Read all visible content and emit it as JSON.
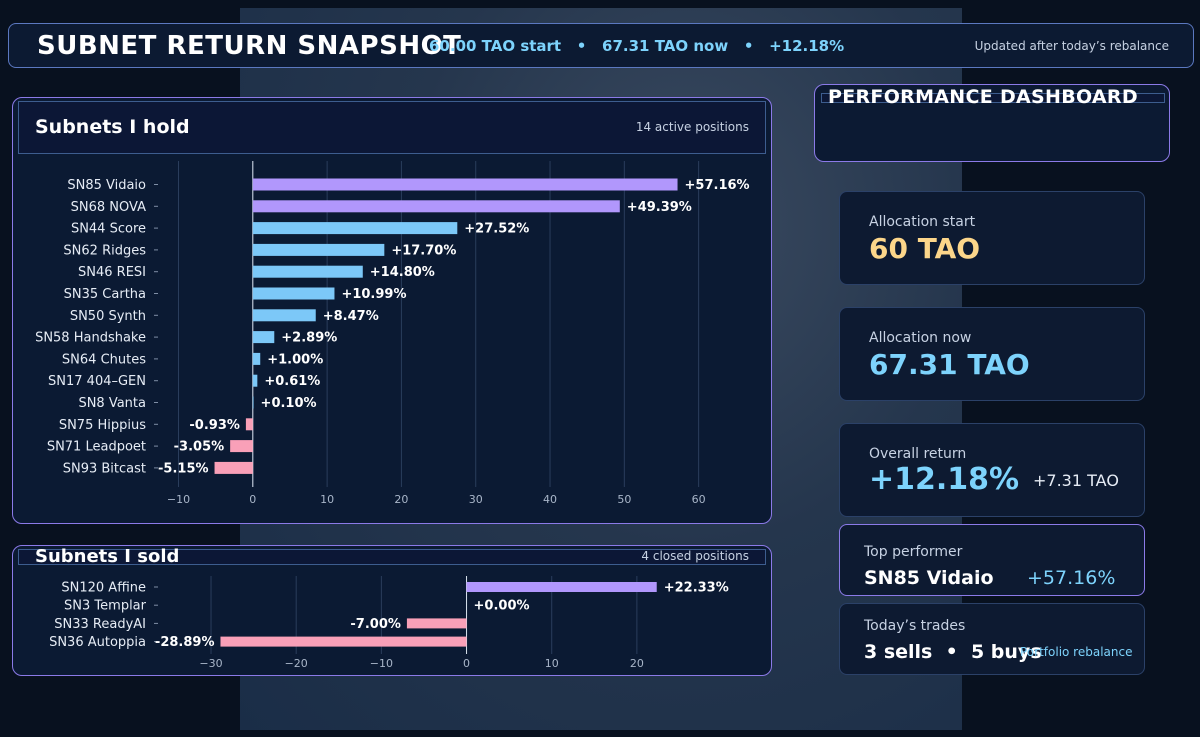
{
  "header": {
    "title": "SUBNET RETURN SNAPSHOT",
    "summary": "60.00 TAO start   •   67.31 TAO now   •   +12.18%",
    "updated": "Updated after today’s rebalance"
  },
  "held_panel": {
    "title": "Subnets I hold",
    "note": "14 active positions"
  },
  "sold_panel": {
    "title": "Subnets I sold",
    "note": "4 closed positions"
  },
  "dashboard": {
    "title": "PERFORMANCE DASHBOARD",
    "allocation_start": {
      "label": "Allocation start",
      "value": "60 TAO"
    },
    "allocation_now": {
      "label": "Allocation now",
      "value": "67.31 TAO"
    },
    "overall_return": {
      "label": "Overall return",
      "value": "+12.18%",
      "delta": "+7.31 TAO"
    },
    "top_performer": {
      "label": "Top performer",
      "name": "SN85 Vidaio",
      "value": "+57.16%"
    },
    "todays_trades": {
      "label": "Today’s trades",
      "value": "3 sells  •  5 buys",
      "note": "Portfolio rebalance"
    }
  },
  "colors": {
    "purple": "#b197fc",
    "blue": "#7cc8f8",
    "pink": "#f9a0b8",
    "gold": "#fcd68a",
    "cyan": "#7dd3fc"
  },
  "chart_data": [
    {
      "type": "bar",
      "orientation": "horizontal",
      "title": "Subnets I hold",
      "categories": [
        "SN85 Vidaio",
        "SN68 NOVA",
        "SN44 Score",
        "SN62 Ridges",
        "SN46 RESI",
        "SN35 Cartha",
        "SN50 Synth",
        "SN58 Handshake",
        "SN64 Chutes",
        "SN17 404–GEN",
        "SN8 Vanta",
        "SN75 Hippius",
        "SN71 Leadpoet",
        "SN93 Bitcast"
      ],
      "values": [
        57.16,
        49.39,
        27.52,
        17.7,
        14.8,
        10.99,
        8.47,
        2.89,
        1.0,
        0.61,
        0.1,
        -0.93,
        -3.05,
        -5.15
      ],
      "data_labels": [
        "+57.16%",
        "+49.39%",
        "+27.52%",
        "+17.70%",
        "+14.80%",
        "+10.99%",
        "+8.47%",
        "+2.89%",
        "+1.00%",
        "+0.61%",
        "+0.10%",
        "-0.93%",
        "-3.05%",
        "-5.15%"
      ],
      "xlim": [
        -10,
        62
      ],
      "xticks": [
        -10,
        0,
        10,
        20,
        30,
        40,
        50,
        60
      ],
      "xtick_labels": [
        "−10",
        "0",
        "10",
        "20",
        "30",
        "40",
        "50",
        "60"
      ],
      "grid": "vertical"
    },
    {
      "type": "bar",
      "orientation": "horizontal",
      "title": "Subnets I sold",
      "categories": [
        "SN120 Affine",
        "SN3 Templar",
        "SN33 ReadyAI",
        "SN36 Autoppia"
      ],
      "values": [
        22.33,
        0.0,
        -7.0,
        -28.89
      ],
      "data_labels": [
        "+22.33%",
        "+0.00%",
        "-7.00%",
        "-28.89%"
      ],
      "xlim": [
        -31,
        27
      ],
      "xticks": [
        -30,
        -20,
        -10,
        0,
        10,
        20
      ],
      "xtick_labels": [
        "−30",
        "−20",
        "−10",
        "0",
        "10",
        "20"
      ],
      "grid": "vertical"
    }
  ]
}
